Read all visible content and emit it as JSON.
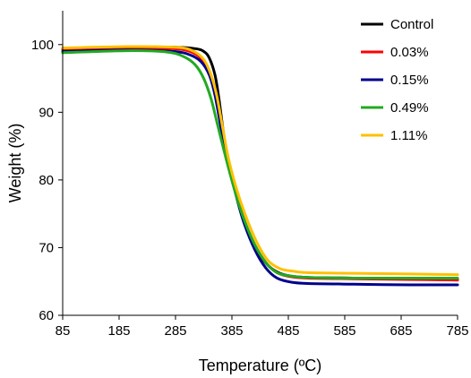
{
  "chart_data": {
    "type": "line",
    "title": "",
    "xlabel": "Temperature (ºC)",
    "ylabel": "Weight (%)",
    "xlim": [
      85,
      785
    ],
    "ylim": [
      60,
      105
    ],
    "xticks": [
      85,
      185,
      285,
      385,
      485,
      585,
      685,
      785
    ],
    "yticks": [
      60,
      70,
      80,
      90,
      100
    ],
    "grid": false,
    "legend": "top-right",
    "series": [
      {
        "name": "Control",
        "color": "#000000",
        "points": [
          [
            85,
            99.4
          ],
          [
            200,
            99.6
          ],
          [
            285,
            99.6
          ],
          [
            320,
            99.4
          ],
          [
            335,
            99.0
          ],
          [
            345,
            98.0
          ],
          [
            355,
            95.5
          ],
          [
            362,
            92.0
          ],
          [
            370,
            87.0
          ],
          [
            380,
            82.0
          ],
          [
            395,
            77.0
          ],
          [
            410,
            73.0
          ],
          [
            430,
            69.5
          ],
          [
            450,
            67.3
          ],
          [
            470,
            66.2
          ],
          [
            490,
            65.8
          ],
          [
            520,
            65.6
          ],
          [
            600,
            65.5
          ],
          [
            700,
            65.4
          ],
          [
            785,
            65.3
          ]
        ]
      },
      {
        "name": "0.03%",
        "color": "#ff0000",
        "points": [
          [
            85,
            99.3
          ],
          [
            200,
            99.5
          ],
          [
            280,
            99.4
          ],
          [
            310,
            99.0
          ],
          [
            330,
            98.0
          ],
          [
            345,
            96.0
          ],
          [
            355,
            93.0
          ],
          [
            365,
            88.5
          ],
          [
            375,
            84.0
          ],
          [
            390,
            79.0
          ],
          [
            405,
            74.5
          ],
          [
            425,
            70.5
          ],
          [
            445,
            67.8
          ],
          [
            465,
            66.3
          ],
          [
            490,
            65.7
          ],
          [
            520,
            65.5
          ],
          [
            600,
            65.4
          ],
          [
            700,
            65.3
          ],
          [
            785,
            65.2
          ]
        ]
      },
      {
        "name": "0.15%",
        "color": "#00008b",
        "points": [
          [
            85,
            99.0
          ],
          [
            200,
            99.2
          ],
          [
            280,
            99.0
          ],
          [
            310,
            98.5
          ],
          [
            330,
            97.5
          ],
          [
            345,
            95.5
          ],
          [
            355,
            92.5
          ],
          [
            365,
            88.0
          ],
          [
            375,
            83.5
          ],
          [
            390,
            78.5
          ],
          [
            405,
            74.0
          ],
          [
            425,
            69.8
          ],
          [
            445,
            67.0
          ],
          [
            465,
            65.5
          ],
          [
            490,
            64.9
          ],
          [
            520,
            64.7
          ],
          [
            600,
            64.6
          ],
          [
            700,
            64.5
          ],
          [
            785,
            64.5
          ]
        ]
      },
      {
        "name": "0.49%",
        "color": "#22aa22",
        "points": [
          [
            85,
            98.8
          ],
          [
            200,
            99.1
          ],
          [
            270,
            98.9
          ],
          [
            300,
            98.2
          ],
          [
            320,
            97.0
          ],
          [
            335,
            95.0
          ],
          [
            348,
            92.0
          ],
          [
            360,
            88.0
          ],
          [
            372,
            84.0
          ],
          [
            388,
            79.0
          ],
          [
            405,
            74.5
          ],
          [
            425,
            70.5
          ],
          [
            445,
            67.8
          ],
          [
            465,
            66.3
          ],
          [
            490,
            65.8
          ],
          [
            520,
            65.6
          ],
          [
            600,
            65.5
          ],
          [
            700,
            65.5
          ],
          [
            785,
            65.5
          ]
        ]
      },
      {
        "name": "1.11%",
        "color": "#ffc000",
        "points": [
          [
            85,
            99.5
          ],
          [
            200,
            99.7
          ],
          [
            285,
            99.6
          ],
          [
            315,
            99.1
          ],
          [
            335,
            97.8
          ],
          [
            348,
            95.5
          ],
          [
            358,
            92.5
          ],
          [
            368,
            88.0
          ],
          [
            378,
            83.5
          ],
          [
            392,
            79.0
          ],
          [
            408,
            75.0
          ],
          [
            428,
            71.0
          ],
          [
            448,
            68.2
          ],
          [
            470,
            66.9
          ],
          [
            495,
            66.5
          ],
          [
            520,
            66.3
          ],
          [
            600,
            66.2
          ],
          [
            700,
            66.1
          ],
          [
            785,
            66.0
          ]
        ]
      }
    ]
  }
}
